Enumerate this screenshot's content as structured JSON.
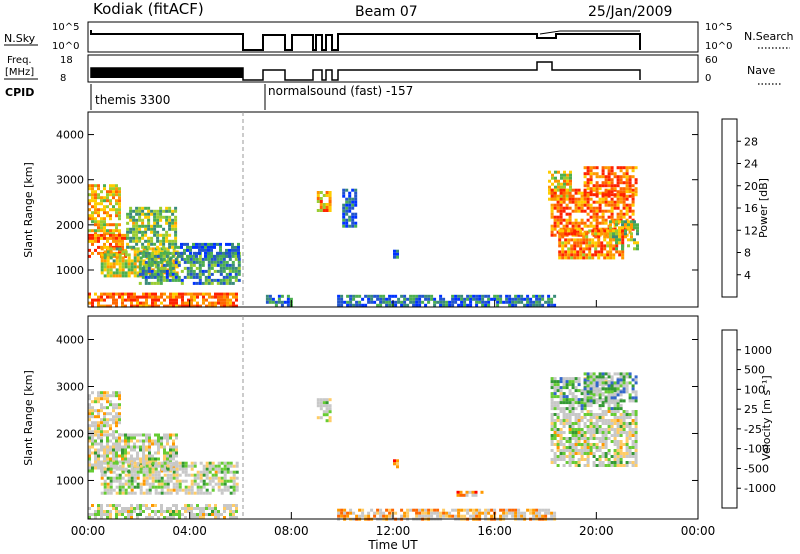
{
  "header": {
    "radar": "Kodiak (fitACF)",
    "beam": "Beam 07",
    "date": "25/Jan/2009"
  },
  "summary_panels": {
    "nsky_label": "N.Sky",
    "nsearch_label": "N.Search",
    "nsky_ticks": [
      "10^5",
      "10^0"
    ],
    "freq_label_1": "Freq.",
    "freq_label_2": "[MHz]",
    "freq_ticks": [
      "18",
      "8"
    ],
    "nave_label": "Nave",
    "nave_ticks": [
      "60",
      "0"
    ],
    "cpid_label": "CPID",
    "cpid_segments": [
      {
        "label": "themis 3300",
        "start": 0,
        "end": 6.4
      },
      {
        "label": "normalsound (fast) -157",
        "start": 6.9,
        "end": 24
      }
    ]
  },
  "colors": {
    "power_scale": [
      "#0033ff",
      "#2255cc",
      "#3a8a7a",
      "#4caf50",
      "#9acd32",
      "#ffcc00",
      "#ff9900",
      "#ff6600",
      "#ff2200"
    ],
    "velocity_scale": [
      "#ff0000",
      "#ff6600",
      "#ff9900",
      "#ffcc66",
      "#cccccc",
      "#cccccc",
      "#66cc33",
      "#339933",
      "#3366cc",
      "#0033cc"
    ]
  },
  "chart_data": [
    {
      "type": "heatmap",
      "title": "",
      "xlabel": "",
      "ylabel": "Slant Range [km]",
      "xlim": [
        0,
        24
      ],
      "ylim": [
        180,
        4500
      ],
      "yticks": [
        "1000",
        "2000",
        "3000",
        "4000"
      ],
      "colorbar": {
        "label": "Power [dB]",
        "ticks": [
          "4",
          "8",
          "12",
          "16",
          "20",
          "24",
          "28"
        ],
        "range": [
          0,
          30
        ]
      },
      "regions": [
        {
          "x0": 0.0,
          "x1": 1.2,
          "y0": 1800,
          "y1": 2900,
          "level": 0.65
        },
        {
          "x0": 0.0,
          "x1": 1.5,
          "y0": 1300,
          "y1": 1800,
          "level": 0.8
        },
        {
          "x0": 0.5,
          "x1": 3.5,
          "y0": 900,
          "y1": 1500,
          "level": 0.55
        },
        {
          "x0": 2.0,
          "x1": 5.9,
          "y0": 700,
          "y1": 1400,
          "level": 0.3
        },
        {
          "x0": 3.5,
          "x1": 5.9,
          "y0": 1300,
          "y1": 1600,
          "level": 0.2
        },
        {
          "x0": 1.5,
          "x1": 3.5,
          "y0": 1500,
          "y1": 2400,
          "level": 0.45
        },
        {
          "x0": 0.0,
          "x1": 5.9,
          "y0": 200,
          "y1": 500,
          "level": 0.85
        },
        {
          "x0": 7.0,
          "x1": 8.0,
          "y0": 200,
          "y1": 450,
          "level": 0.2
        },
        {
          "x0": 9.0,
          "x1": 9.25,
          "y0": 2300,
          "y1": 2750,
          "level": 0.7
        },
        {
          "x0": 9.35,
          "x1": 9.55,
          "y0": 2300,
          "y1": 2750,
          "level": 0.75
        },
        {
          "x0": 10.0,
          "x1": 10.5,
          "y0": 2000,
          "y1": 2800,
          "level": 0.15
        },
        {
          "x0": 9.8,
          "x1": 18.3,
          "y0": 200,
          "y1": 450,
          "level": 0.2
        },
        {
          "x0": 12.0,
          "x1": 12.2,
          "y0": 1300,
          "y1": 1450,
          "level": 0.2
        },
        {
          "x0": 18.1,
          "x1": 19.0,
          "y0": 2600,
          "y1": 3200,
          "level": 0.6
        },
        {
          "x0": 18.2,
          "x1": 21.5,
          "y0": 1800,
          "y1": 2800,
          "level": 0.8
        },
        {
          "x0": 19.5,
          "x1": 21.6,
          "y0": 2700,
          "y1": 3300,
          "level": 0.85
        },
        {
          "x0": 18.5,
          "x1": 21.0,
          "y0": 1300,
          "y1": 1900,
          "level": 0.75
        },
        {
          "x0": 20.5,
          "x1": 21.6,
          "y0": 1500,
          "y1": 2100,
          "level": 0.5
        }
      ]
    },
    {
      "type": "heatmap",
      "title": "",
      "xlabel": "Time UT",
      "ylabel": "Slant Range [km]",
      "xlim": [
        0,
        24
      ],
      "ylim": [
        180,
        4500
      ],
      "xticks": [
        "00:00",
        "04:00",
        "08:00",
        "12:00",
        "16:00",
        "20:00",
        "00:00"
      ],
      "yticks": [
        "1000",
        "2000",
        "3000",
        "4000"
      ],
      "colorbar": {
        "label": "Velocity [m s⁻¹]",
        "ticks": [
          "-1000",
          "-500",
          "-100",
          "-25",
          "25",
          "100",
          "500",
          "1000"
        ],
        "range": [
          -1200,
          1200
        ]
      },
      "regions": [
        {
          "x0": 0.0,
          "x1": 1.2,
          "y0": 2000,
          "y1": 2900,
          "level": 0.45
        },
        {
          "x0": 0.0,
          "x1": 3.5,
          "y0": 1200,
          "y1": 2000,
          "level": 0.5
        },
        {
          "x0": 0.5,
          "x1": 5.9,
          "y0": 700,
          "y1": 1400,
          "level": 0.52
        },
        {
          "x0": 0.0,
          "x1": 5.9,
          "y0": 200,
          "y1": 500,
          "level": 0.5
        },
        {
          "x0": 9.0,
          "x1": 9.25,
          "y0": 2300,
          "y1": 2750,
          "level": 0.5
        },
        {
          "x0": 9.35,
          "x1": 9.55,
          "y0": 2300,
          "y1": 2750,
          "level": 0.5
        },
        {
          "x0": 9.8,
          "x1": 18.3,
          "y0": 200,
          "y1": 400,
          "level": 0.35
        },
        {
          "x0": 12.0,
          "x1": 12.2,
          "y0": 1300,
          "y1": 1450,
          "level": 0.25
        },
        {
          "x0": 14.5,
          "x1": 15.5,
          "y0": 700,
          "y1": 780,
          "level": 0.3
        },
        {
          "x0": 18.2,
          "x1": 21.0,
          "y0": 2500,
          "y1": 3200,
          "level": 0.6
        },
        {
          "x0": 19.5,
          "x1": 21.6,
          "y0": 2700,
          "y1": 3300,
          "level": 0.65
        },
        {
          "x0": 18.2,
          "x1": 21.6,
          "y0": 1300,
          "y1": 2500,
          "level": 0.5
        }
      ]
    }
  ],
  "footer": {
    "xlabel": "Time UT"
  }
}
